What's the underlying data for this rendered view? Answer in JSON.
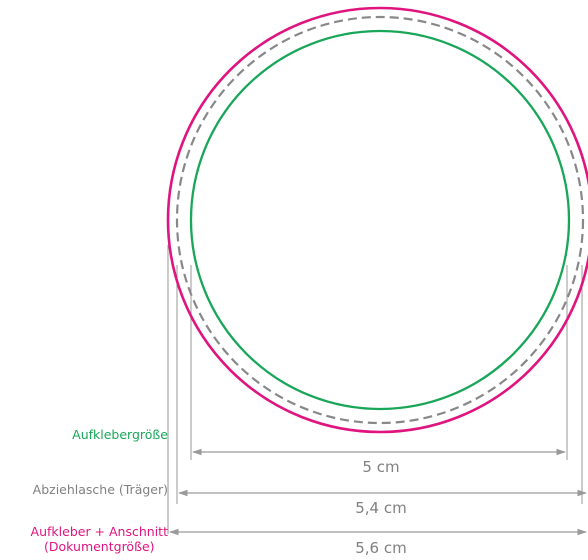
{
  "labels": {
    "sticker_size": "Aufklebergröße",
    "liner": "Abziehlasche (Träger)",
    "bleed_line1": "Aufkleber + Anschnitt",
    "bleed_line2": "(Dokumentgröße)"
  },
  "dimensions": {
    "sticker": "5 cm",
    "liner": "5,4 cm",
    "bleed": "5,6 cm"
  },
  "colors": {
    "sticker": "#1aa659",
    "liner": "#888888",
    "bleed": "#e0147f",
    "dim_line": "#9a9a9a",
    "dim_text": "#808080"
  }
}
